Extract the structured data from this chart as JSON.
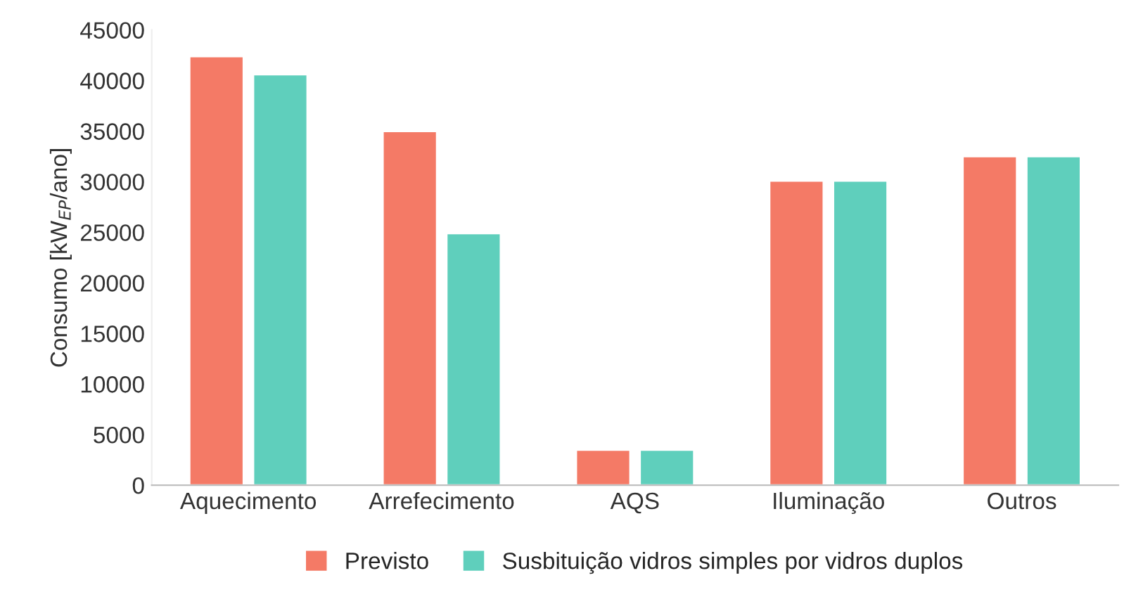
{
  "chart_data": {
    "type": "bar",
    "ylabel": "Consumo [kW$_{EP}$/ano]",
    "categories": [
      "Aquecimento",
      "Arrefecimento",
      "AQS",
      "Iluminação",
      "Outros"
    ],
    "series": [
      {
        "name": "Previsto",
        "color": "#f47a66",
        "values": [
          42400,
          35000,
          3500,
          30100,
          32500
        ]
      },
      {
        "name": "Susbituição vidros simples por vidros duplos",
        "color": "#5fcfbc",
        "values": [
          40600,
          24900,
          3500,
          30100,
          32500
        ]
      }
    ],
    "ylim": [
      0,
      45000
    ],
    "yticks": [
      0,
      5000,
      10000,
      15000,
      20000,
      25000,
      30000,
      35000,
      40000,
      45000
    ],
    "grid": false,
    "legend": "bottom"
  }
}
